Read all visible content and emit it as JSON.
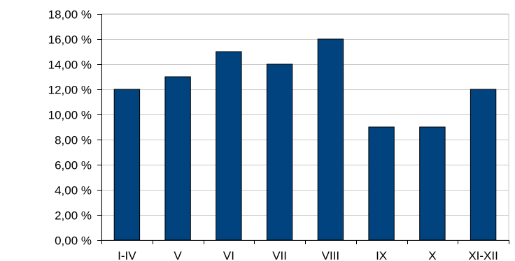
{
  "chart_data": {
    "type": "bar",
    "title": "",
    "xlabel": "",
    "ylabel": "",
    "categories": [
      "I-IV",
      "V",
      "VI",
      "VII",
      "VIII",
      "IX",
      "X",
      "XI-XII"
    ],
    "values": [
      12,
      13,
      15,
      14,
      16,
      9,
      9,
      12
    ],
    "ylim": [
      0,
      18
    ],
    "ytick_values": [
      0,
      2,
      4,
      6,
      8,
      10,
      12,
      14,
      16,
      18
    ],
    "ytick_labels": [
      "0,00 %",
      "2,00 %",
      "4,00 %",
      "6,00 %",
      "8,00 %",
      "10,00 %",
      "12,00 %",
      "14,00 %",
      "16,00 %",
      "18,00 %"
    ],
    "grid": true,
    "legend": "none",
    "bar_color": "#00437F"
  }
}
